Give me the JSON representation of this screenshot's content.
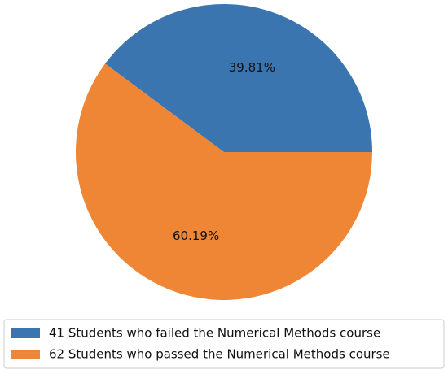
{
  "chart_data": {
    "type": "pie",
    "categories": [
      "41 Students who failed the Numerical Methods course",
      "62 Students who passed the Numerical Methods course"
    ],
    "values": [
      39.81,
      60.19
    ],
    "value_labels": [
      "39.81%",
      "60.19%"
    ],
    "colors": [
      "#3a75b0",
      "#ef8636"
    ],
    "legend": "lower center"
  }
}
